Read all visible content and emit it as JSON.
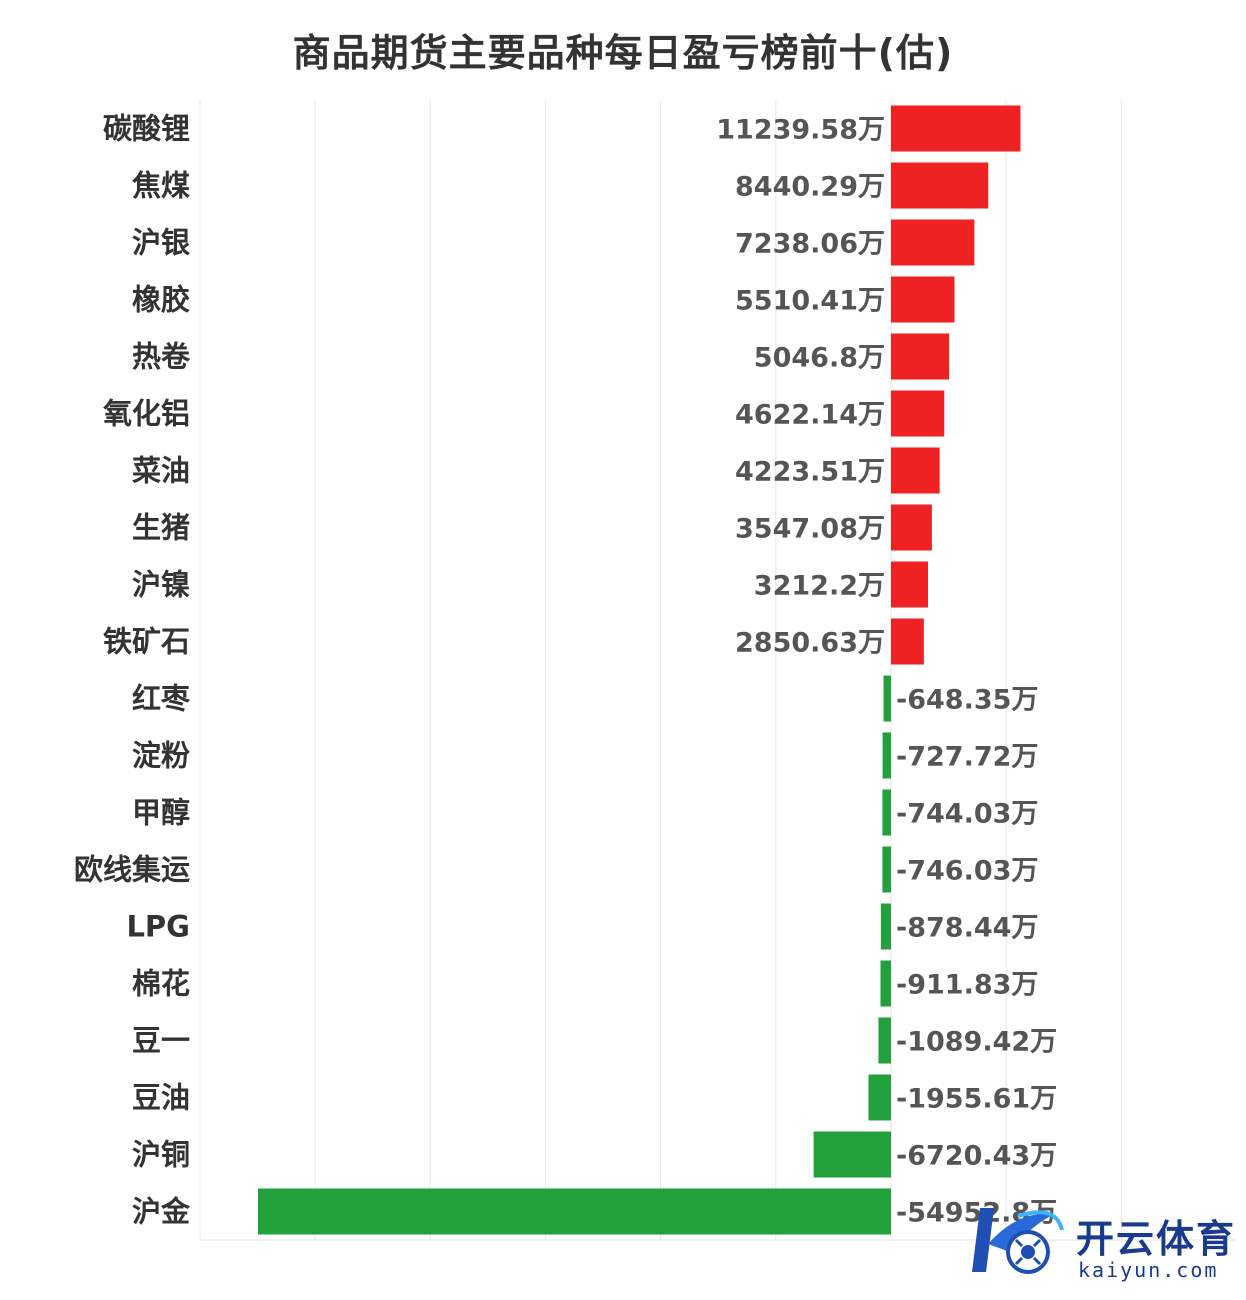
{
  "chart_data": {
    "type": "bar",
    "orientation": "horizontal",
    "title": "商品期货主要品种每日盈亏榜前十(估)",
    "unit_suffix": "万",
    "categories": [
      "碳酸锂",
      "焦煤",
      "沪银",
      "橡胶",
      "热卷",
      "氧化铝",
      "菜油",
      "生猪",
      "沪镍",
      "铁矿石",
      "红枣",
      "淀粉",
      "甲醇",
      "欧线集运",
      "LPG",
      "棉花",
      "豆一",
      "豆油",
      "沪铜",
      "沪金"
    ],
    "values": [
      11239.58,
      8440.29,
      7238.06,
      5510.41,
      5046.8,
      4622.14,
      4223.51,
      3547.08,
      3212.2,
      2850.63,
      -648.35,
      -727.72,
      -744.03,
      -746.03,
      -878.44,
      -911.83,
      -1089.42,
      -1955.61,
      -6720.43,
      -54952.8
    ],
    "value_labels": [
      "11239.58万",
      "8440.29万",
      "7238.06万",
      "5510.41万",
      "5046.8万",
      "4622.14万",
      "4223.51万",
      "3547.08万",
      "3212.2万",
      "2850.63万",
      "-648.35万",
      "-727.72万",
      "-744.03万",
      "-746.03万",
      "-878.44万",
      "-911.83万",
      "-1089.42万",
      "-1955.61万",
      "-6720.43万",
      "-54952.8万"
    ],
    "xlim": [
      -60000,
      20000
    ],
    "grid": true,
    "colors": {
      "positive": "#ee2222",
      "negative": "#22a03c",
      "grid": "#e6e6e6"
    }
  },
  "watermark": {
    "brand": "开云体育",
    "url": "kaiyun.com"
  }
}
